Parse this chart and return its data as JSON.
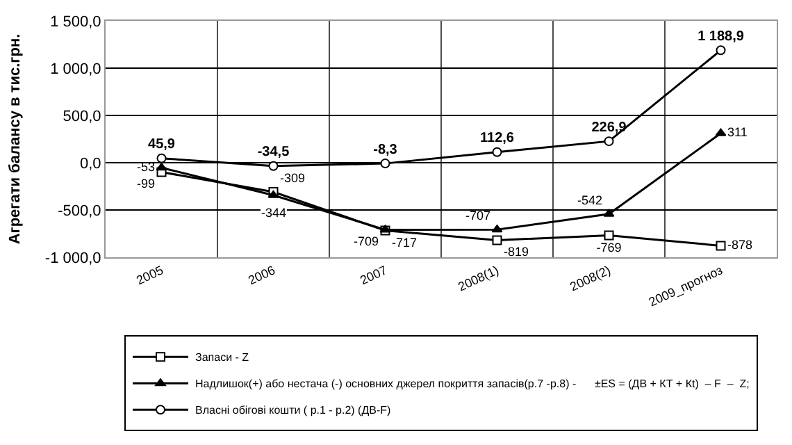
{
  "chart_data": {
    "type": "line",
    "ylabel": "Агрегати балансу в тис.грн.",
    "categories": [
      "2005",
      "2006",
      "2007",
      "2008(1)",
      "2008(2)",
      "2009_прогноз"
    ],
    "series": [
      {
        "name": "Запаси - Z",
        "color": "#000000",
        "marker": "square",
        "values": [
          -99,
          -309,
          -717,
          -819,
          -769,
          -878
        ],
        "value_labels": [
          "-99",
          "-309",
          "-717",
          "-819",
          "-769",
          "-878"
        ]
      },
      {
        "name": "Надлишок(+) або нестача (-) основних джерел покриття запасів(р.7 -р.8) -      ±ES = (ДВ + КТ + Кt)  – F  –  Z;",
        "color": "#000000",
        "marker": "triangle",
        "values": [
          -53,
          -344,
          -709,
          -707,
          -542,
          311
        ],
        "value_labels": [
          "-53",
          "-344",
          "-709",
          "-707",
          "-542",
          "311"
        ]
      },
      {
        "name": "Власні обігові кошти ( р.1 - р.2) (ДВ-F)",
        "color": "#000000",
        "marker": "circle",
        "values": [
          45.9,
          -34.5,
          -8.3,
          112.6,
          226.9,
          1188.9
        ],
        "value_labels": [
          "45,9",
          "-34,5",
          "-8,3",
          "112,6",
          "226,9",
          "1 188,9"
        ]
      }
    ],
    "ylim": [
      -1000,
      1500
    ],
    "yticks": [
      {
        "value": -1000,
        "label": "-1 000,0"
      },
      {
        "value": -500,
        "label": "-500,0"
      },
      {
        "value": 0,
        "label": "0,0"
      },
      {
        "value": 500,
        "label": "500,0"
      },
      {
        "value": 1000,
        "label": "1 000,0"
      },
      {
        "value": 1500,
        "label": "1 500,0"
      }
    ],
    "grid": true,
    "legend": "bottom",
    "line_style": "solid"
  }
}
